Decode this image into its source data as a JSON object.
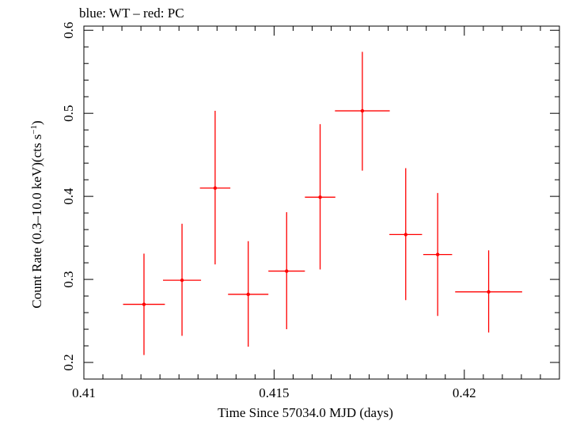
{
  "chart_data": {
    "type": "scatter",
    "title": "blue: WT – red: PC",
    "xlabel": "Time Since 57034.0 MJD (days)",
    "ylabel": "Count Rate (0.3–10.0 keV)(cts s",
    "ylabel_sup": "−1",
    "ylabel_tail": ")",
    "xlim": [
      0.41,
      0.4225
    ],
    "ylim": [
      0.18,
      0.605
    ],
    "x_ticks": [
      0.41,
      0.415,
      0.42
    ],
    "x_tick_labels": [
      "0.41",
      "0.415",
      "0.42"
    ],
    "y_ticks": [
      0.2,
      0.3,
      0.4,
      0.5,
      0.6
    ],
    "y_tick_labels": [
      "0.2",
      "0.3",
      "0.4",
      "0.5",
      "0.6"
    ],
    "grid": false,
    "series": [
      {
        "name": "PC",
        "color": "#ff0000",
        "points": [
          {
            "x": 0.41158,
            "xerr": 0.00055,
            "y": 0.27,
            "yerr_lo": 0.061,
            "yerr_hi": 0.061
          },
          {
            "x": 0.41258,
            "xerr": 0.0005,
            "y": 0.299,
            "yerr_lo": 0.067,
            "yerr_hi": 0.068
          },
          {
            "x": 0.41345,
            "xerr": 0.0004,
            "y": 0.41,
            "yerr_lo": 0.092,
            "yerr_hi": 0.093
          },
          {
            "x": 0.41432,
            "xerr": 0.00053,
            "y": 0.282,
            "yerr_lo": 0.063,
            "yerr_hi": 0.064
          },
          {
            "x": 0.41533,
            "xerr": 0.00048,
            "y": 0.31,
            "yerr_lo": 0.07,
            "yerr_hi": 0.071
          },
          {
            "x": 0.41621,
            "xerr": 0.0004,
            "y": 0.399,
            "yerr_lo": 0.087,
            "yerr_hi": 0.088
          },
          {
            "x": 0.41732,
            "xerr": 0.00072,
            "y": 0.503,
            "yerr_lo": 0.072,
            "yerr_hi": 0.071
          },
          {
            "x": 0.41846,
            "xerr": 0.00043,
            "y": 0.354,
            "yerr_lo": 0.079,
            "yerr_hi": 0.08
          },
          {
            "x": 0.4193,
            "xerr": 0.00038,
            "y": 0.33,
            "yerr_lo": 0.074,
            "yerr_hi": 0.074
          },
          {
            "x": 0.42064,
            "xerr": 0.00088,
            "y": 0.285,
            "yerr_lo": 0.049,
            "yerr_hi": 0.05
          }
        ]
      }
    ]
  }
}
